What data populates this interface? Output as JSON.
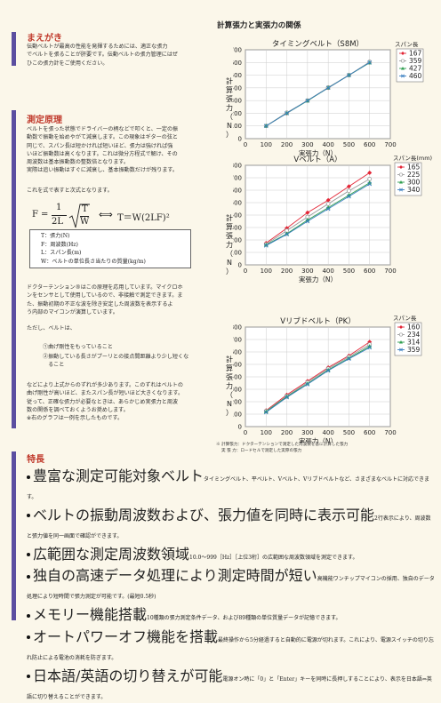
{
  "intro": {
    "title": "まえがき",
    "text": "伝動ベルトが最高の性能を発揮するためには、適正な張力\nでベルトを張ることが肝要です。伝動ベルトの張力管理にはぜ\nひこの張力計をご使用ください。"
  },
  "principle": {
    "title": "測定原理",
    "text": "ベルトを張った状態でドライバーの柄などで叩くと、一定の振\n動数で振動を始めやがて減衰します。この現象はギターの弦と\n同じで、スパン長は短かければ短いほど、張力は強ければ強\nいほど振動数は高くなります。これは微分方程式で解け、その\n周波数は基本振動数の整数倍となります。\n実際は追い振動はすぐに減衰し、基本振動数だけが残ります。",
    "formula_intro": "これを式で表すと次式となります。",
    "formula": {
      "F": "F",
      "eq": "=",
      "num1": "1",
      "den1": "2L",
      "sqrt_num": "T",
      "sqrt_den": "W",
      "arrow": "⟺",
      "rhs": "T＝W(2LF)²"
    },
    "legend": [
      "T：張力(N)",
      "F：周波数(Hz)",
      "L：スパン長(m)",
      "W：ベルトの単位長さ当たりの質量(kg/m)"
    ],
    "text2": "ドクターテンション®はこの原理を応用しています。マイクロホ\nンをセンサとして使用しているので、非接触で測定できます。ま\nた、振動初期の不正な波を除き安定した周波数を表示するよ\nう内部のマイコンが演算しています。",
    "text3": "ただし、ベルトは、",
    "conditions": [
      "①曲げ剛性をもっていること",
      "②振動している長さがプーリとの接点間距離より少し短くな\n　ること"
    ],
    "text4": "などにより上式からのずれが多少あります。このずれはベルトの\n曲げ剛性が高いほど、またスパン長が短いほど大きくなります。\n従って、正確な張力が必要なときは、あらかじめ実張力と周波\n数の関係を調べておくようお奨めします。\n※右のグラフは一例を示したものです。"
  },
  "charts_heading": "計算張力と実張力の関係",
  "chart_data": [
    {
      "type": "scatter",
      "title": "タイミングベルト（S8M）",
      "xlabel": "実張力（N）",
      "ylabel": "計算張力（N）",
      "legend_title": "スパン長",
      "xlim": [
        0,
        700
      ],
      "ylim": [
        0,
        700
      ],
      "xticks": [
        "0",
        "100",
        "200",
        "300",
        "400",
        "500",
        "600",
        "700"
      ],
      "yticks": [
        "700",
        "600",
        "500",
        "400",
        "300",
        "200",
        "100",
        "0"
      ],
      "series": [
        {
          "name": "167",
          "color": "#e32636",
          "marker": "diamond",
          "x": [
            100,
            200,
            300,
            400,
            500,
            600
          ],
          "y": [
            100,
            200,
            300,
            400,
            500,
            600
          ]
        },
        {
          "name": "359",
          "color": "#999999",
          "marker": "circle",
          "x": [
            100,
            200,
            300,
            400,
            500,
            600
          ],
          "y": [
            100,
            205,
            300,
            403,
            500,
            605
          ]
        },
        {
          "name": "427",
          "color": "#2e9e4f",
          "marker": "triangle",
          "x": [
            100,
            200,
            300,
            400,
            500,
            600
          ],
          "y": [
            100,
            200,
            298,
            400,
            500,
            598
          ]
        },
        {
          "name": "460",
          "color": "#3a7fc1",
          "marker": "cross",
          "x": [
            100,
            200,
            300,
            400,
            500,
            600
          ],
          "y": [
            100,
            200,
            300,
            400,
            500,
            600
          ]
        }
      ]
    },
    {
      "type": "scatter",
      "title": "Vベルト（A）",
      "xlabel": "実張力（N）",
      "ylabel": "計算張力（N）",
      "legend_title": "スパン長(mm)",
      "xlim": [
        0,
        700
      ],
      "ylim": [
        0,
        800
      ],
      "xticks": [
        "0",
        "100",
        "200",
        "300",
        "400",
        "500",
        "600",
        "700"
      ],
      "yticks": [
        "800",
        "700",
        "600",
        "500",
        "400",
        "300",
        "200",
        "100",
        "0"
      ],
      "series": [
        {
          "name": "165",
          "color": "#e32636",
          "marker": "diamond",
          "x": [
            100,
            200,
            300,
            400,
            500,
            600
          ],
          "y": [
            175,
            295,
            420,
            520,
            630,
            740
          ]
        },
        {
          "name": "225",
          "color": "#999999",
          "marker": "circle",
          "x": [
            100,
            200,
            300,
            400,
            500,
            600
          ],
          "y": [
            165,
            275,
            385,
            490,
            595,
            690
          ]
        },
        {
          "name": "300",
          "color": "#2e9e4f",
          "marker": "triangle",
          "x": [
            100,
            200,
            300,
            400,
            500,
            600
          ],
          "y": [
            160,
            250,
            360,
            460,
            560,
            660
          ]
        },
        {
          "name": "340",
          "color": "#3a7fc1",
          "marker": "cross",
          "x": [
            100,
            200,
            300,
            400,
            500,
            600
          ],
          "y": [
            155,
            245,
            350,
            450,
            550,
            650
          ]
        }
      ]
    },
    {
      "type": "scatter",
      "title": "Vリブドベルト（PK）",
      "xlabel": "実張力（N）",
      "ylabel": "計算張力（N）",
      "legend_title": "スパン長",
      "xlim": [
        0,
        700
      ],
      "ylim": [
        0,
        800
      ],
      "xticks": [
        "0",
        "100",
        "200",
        "300",
        "400",
        "500",
        "600",
        "700"
      ],
      "yticks": [
        "800",
        "700",
        "600",
        "500",
        "400",
        "300",
        "200",
        "100",
        "0"
      ],
      "series": [
        {
          "name": "160",
          "color": "#e32636",
          "marker": "diamond",
          "x": [
            100,
            200,
            300,
            400,
            500,
            600
          ],
          "y": [
            130,
            255,
            365,
            475,
            570,
            680
          ]
        },
        {
          "name": "234",
          "color": "#999999",
          "marker": "circle",
          "x": [
            100,
            200,
            300,
            400,
            500,
            600
          ],
          "y": [
            125,
            245,
            355,
            465,
            560,
            660
          ]
        },
        {
          "name": "314",
          "color": "#2e9e4f",
          "marker": "triangle",
          "x": [
            100,
            200,
            300,
            400,
            500,
            600
          ],
          "y": [
            120,
            240,
            345,
            455,
            550,
            645
          ]
        },
        {
          "name": "359",
          "color": "#3a7fc1",
          "marker": "cross",
          "x": [
            100,
            200,
            300,
            400,
            500,
            600
          ],
          "y": [
            115,
            235,
            340,
            450,
            545,
            635
          ]
        }
      ]
    }
  ],
  "chart_note": "※ 計算張力：ドクターテンションで測定した周波数を基に計算した張力\n　 実 張 力：ロードセルで測定した実際の張力",
  "features": {
    "title": "特長",
    "items": [
      {
        "title": "豊富な測定可能対象ベルト",
        "desc": "タイミングベルト、平ベルト、Vベルト、Vリブドベルトなど、さまざまなベルトに対応できます。"
      },
      {
        "title": "ベルトの振動周波数および、張力値を同時に表示可能",
        "desc": "2行表示により、周波数と張力値を同一画面で確認ができます。"
      },
      {
        "title": "広範囲な測定周波数領域",
        "desc": "10.0〜999［Hz］［上位3桁］の広範囲な周波数領域を測定できます。"
      },
      {
        "title": "独自の高速データ処理により測定時間が短い",
        "desc": "高機能ワンチップマイコンの採用、独自のデータ処理により短時間で張力測定が可能です。(最短0.5秒)"
      },
      {
        "title": "メモリー機能搭載",
        "desc": "10種類の張力測定条件データ、および89種類の単位質量データが記憶できます。"
      },
      {
        "title": "オートパワーオフ機能を搭載",
        "desc": "最終操作から5分経過すると自動的に電源が切れます。これにより、電源スイッチの切り忘れ防止による電池の消耗を防ぎます。"
      },
      {
        "title": "日本語/英語の切り替えが可能",
        "desc": "電源オン時に「0」と「Enter」キーを同時に長押しすることにより、表示を日本語⇔英語に切り替えることができます。"
      }
    ]
  },
  "colors": {
    "accent": "#c0392b",
    "sidebar": "#5b4ea0",
    "background": "#fbf7ea",
    "plot_bg": "#ffffff"
  }
}
